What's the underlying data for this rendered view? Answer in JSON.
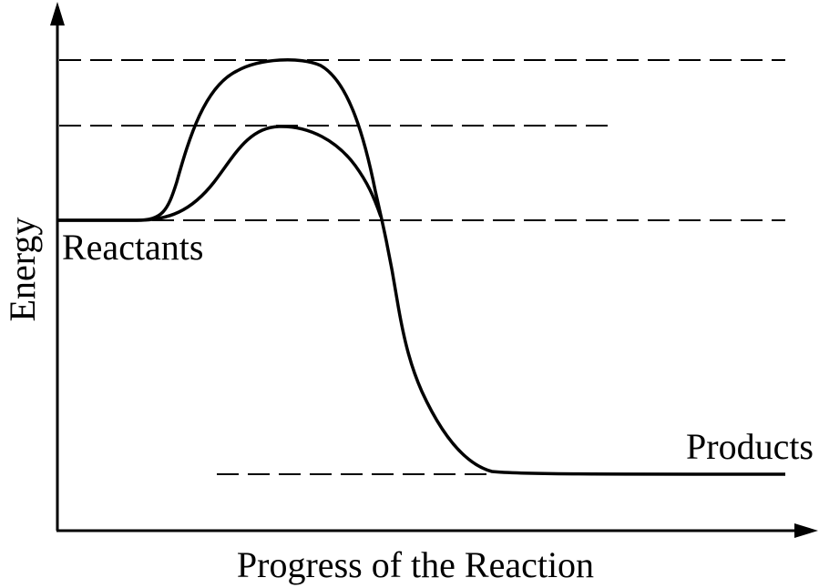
{
  "labels": {
    "y_axis": "Energy",
    "x_axis": "Progress of the Reaction",
    "reactants": "Reactants",
    "products": "Products"
  },
  "colors": {
    "ink": "#000000",
    "background": "#ffffff"
  }
}
